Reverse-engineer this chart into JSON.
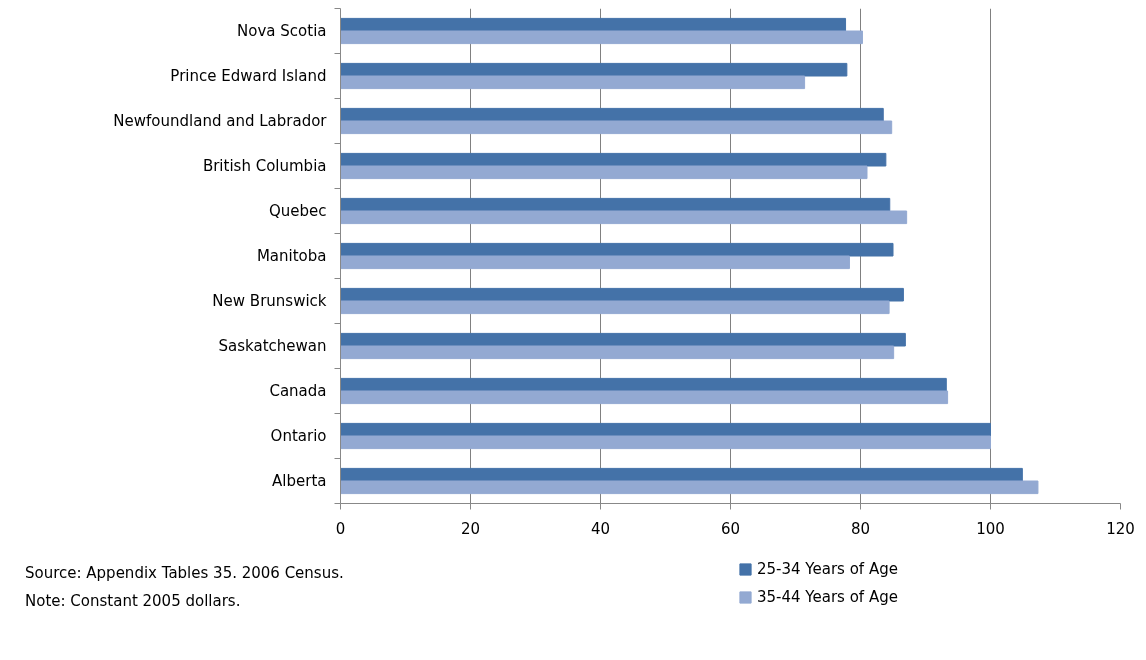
{
  "chart_data": {
    "type": "bar",
    "orientation": "horizontal",
    "categories": [
      "Nova Scotia",
      "Prince Edward Island",
      "Newfoundland and Labrador",
      "British Columbia",
      "Quebec",
      "Manitoba",
      "New Brunswick",
      "Saskatchewan",
      "Canada",
      "Ontario",
      "Alberta"
    ],
    "series": [
      {
        "name": "25-34 Years of Age",
        "color": "#4472a8",
        "values": [
          77.7,
          77.9,
          83.5,
          83.9,
          84.5,
          85.0,
          86.6,
          86.9,
          93.2,
          100,
          104.9
        ]
      },
      {
        "name": "35-44 Years of Age",
        "color": "#93a9d2",
        "values": [
          80.3,
          71.4,
          84.8,
          81.0,
          87.1,
          78.3,
          84.4,
          85.1,
          93.4,
          100,
          107.3
        ]
      }
    ],
    "xlim": [
      0,
      120
    ],
    "xticks": [
      0,
      20,
      40,
      60,
      80,
      100,
      120
    ],
    "grid": "x",
    "legend": "bottom right",
    "annotations": [
      "Source: Appendix Tables 35. 2006 Census.",
      "Note: Constant 2005 dollars."
    ]
  }
}
